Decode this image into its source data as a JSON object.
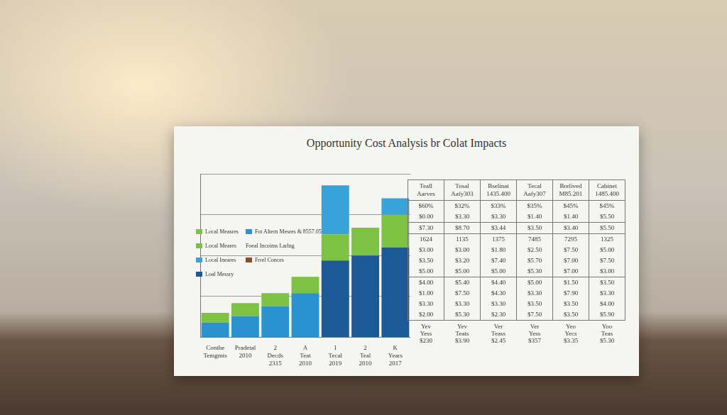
{
  "chart_data": {
    "type": "bar",
    "title": "Opportunity Cost Analysis br Colat Impacts",
    "categories": [
      [
        "Conthe",
        "Temgmts"
      ],
      [
        "Pradetal",
        "2010"
      ],
      [
        "2",
        "Decds",
        "2315"
      ],
      [
        "A",
        "Teat",
        "2010"
      ],
      [
        "1",
        "Tecal",
        "2019"
      ],
      [
        "2",
        "Teal",
        "2010"
      ],
      [
        "K",
        "Years",
        "2017"
      ]
    ],
    "series": [
      {
        "name": "Loal Messry",
        "color": "#1b5a97",
        "values": [
          0,
          0,
          0,
          0,
          47,
          50,
          55
        ]
      },
      {
        "name": "Fot Altern Mesres & 8557.05",
        "color": "#2a93cf",
        "values": [
          9,
          13,
          19,
          27,
          0,
          0,
          0
        ]
      },
      {
        "name": "Local Measres",
        "color": "#7dc242",
        "values": [
          6,
          8,
          8,
          10,
          16,
          17,
          20
        ]
      },
      {
        "name": "Local Ineares",
        "color": "#38a3d8",
        "values": [
          0,
          0,
          0,
          0,
          30,
          0,
          10
        ]
      }
    ],
    "ylim": [
      0,
      100
    ],
    "yticks": [
      0,
      25,
      50,
      75,
      100
    ],
    "grid": true,
    "stacked": true,
    "tick_labels": "x"
  },
  "legend_entries": [
    {
      "label": "Local Measres",
      "color": "#7dc242"
    },
    {
      "label": "Local Meares",
      "color": "#7dc242"
    },
    {
      "label": "Local Ineares",
      "color": "#38a3d8"
    },
    {
      "label": "Loal Messry",
      "color": "#1b5a97"
    },
    {
      "label": "Fot Altern Mesres & 8557.05",
      "color": "#2a93cf"
    },
    {
      "label": "Foeal Incoims Larlng"
    },
    {
      "label": "Frrel Conces",
      "color": "#8a4b2a"
    }
  ],
  "table": {
    "header": [
      [
        "Teall",
        "Aarves"
      ],
      [
        "Tosal",
        "Aafy303"
      ],
      [
        "Bselinat",
        "1435.400"
      ],
      [
        "Tecal",
        "Aafy307"
      ],
      [
        "Brelived",
        "M85.201"
      ],
      [
        "Cabinet",
        "1485.400"
      ]
    ],
    "row_groups": [
      [
        [
          "$60%",
          "$32%",
          "$33%",
          "$35%",
          "$45%",
          "$45%"
        ],
        [
          "$0.00",
          "$3.30",
          "$3.30",
          "$1.40",
          "$1.40",
          "$5.50"
        ]
      ],
      [
        [
          "$7.30",
          "$8.70",
          "$3.44",
          "$3.50",
          "$3.40",
          "$5.50"
        ]
      ],
      [
        [
          "1624",
          "1135",
          "1375",
          "7485",
          "7295",
          "1325"
        ],
        [
          "$3.00",
          "$3.00",
          "$1.80",
          "$2.50",
          "$7.50",
          "$5.00"
        ],
        [
          "$3.50",
          "$3.20",
          "$7.40",
          "$5.70",
          "$7.00",
          "$7.50"
        ],
        [
          "$5.00",
          "$5.00",
          "$5.00",
          "$5.30",
          "$7.00",
          "$3.00"
        ]
      ],
      [
        [
          "$4.00",
          "$5.40",
          "$4.40",
          "$5.00",
          "$1.50",
          "$3.50"
        ],
        [
          "$1.00",
          "$7.50",
          "$4.30",
          "$3.30",
          "$7.90",
          "$3.30"
        ],
        [
          "$3.30",
          "$3.30",
          "$3.30",
          "$3.50",
          "$3.50",
          "$4.00"
        ],
        [
          "$2.00",
          "$5.30",
          "$2.30",
          "$7.50",
          "$3.50",
          "$5.90"
        ]
      ]
    ],
    "footer": [
      [
        "Yev",
        "Yess",
        "$230"
      ],
      [
        "Yev",
        "Teats",
        "$3.90"
      ],
      [
        "Ver",
        "Teass",
        "$2.45"
      ],
      [
        "Ver",
        "Yess",
        "$357"
      ],
      [
        "Yeo",
        "Yecs",
        "$3.35"
      ],
      [
        "Yoo",
        "Teas",
        "$5.30"
      ]
    ]
  }
}
